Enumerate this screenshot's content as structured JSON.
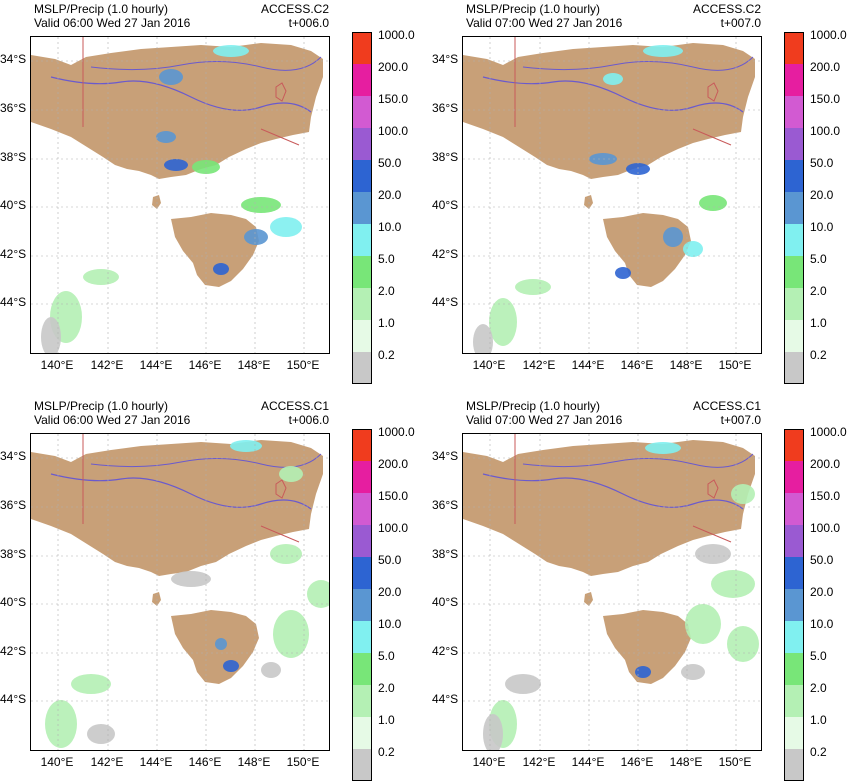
{
  "colorbar": {
    "labels": [
      "1000.0",
      "200.0",
      "150.0",
      "100.0",
      "50.0",
      "20.0",
      "10.0",
      "5.0",
      "2.0",
      "1.0",
      "0.2"
    ],
    "colors": [
      "#f03c1e",
      "#e61ea0",
      "#d25ad2",
      "#9a5ad2",
      "#2d64d2",
      "#5a96d2",
      "#80f0f0",
      "#78e678",
      "#b4f0b4",
      "#e6fae6",
      "#c8c8c8"
    ]
  },
  "axes": {
    "lat_labels": [
      "34°S",
      "36°S",
      "38°S",
      "40°S",
      "42°S",
      "44°S"
    ],
    "lon_labels": [
      "140°E",
      "142°E",
      "144°E",
      "146°E",
      "148°E",
      "150°E"
    ]
  },
  "colors": {
    "land": "#c8a078",
    "border": "#c85a5a",
    "river": "#6a5acd",
    "grid": "#b0b0b0"
  },
  "panels": [
    {
      "title": "MSLP/Precip (1.0 hourly)",
      "valid": "Valid 06:00 Wed 27 Jan 2016",
      "model": "ACCESS.C2",
      "lead": "t+006.0"
    },
    {
      "title": "MSLP/Precip (1.0 hourly)",
      "valid": "Valid 07:00 Wed 27 Jan 2016",
      "model": "ACCESS.C2",
      "lead": "t+007.0"
    },
    {
      "title": "MSLP/Precip (1.0 hourly)",
      "valid": "Valid 06:00 Wed 27 Jan 2016",
      "model": "ACCESS.C1",
      "lead": "t+006.0"
    },
    {
      "title": "MSLP/Precip (1.0 hourly)",
      "valid": "Valid 07:00 Wed 27 Jan 2016",
      "model": "ACCESS.C1",
      "lead": "t+007.0"
    }
  ]
}
